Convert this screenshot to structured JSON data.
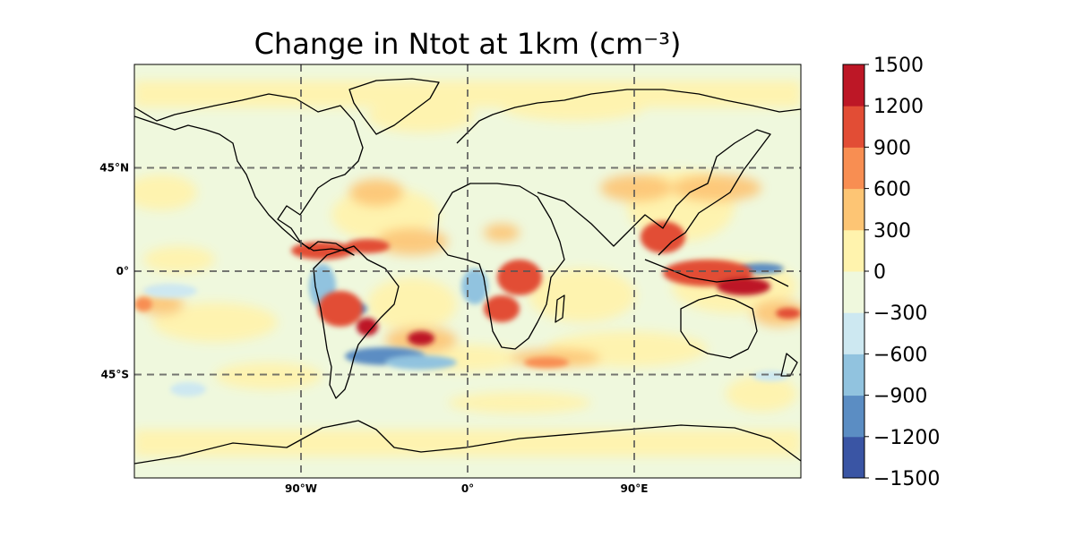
{
  "title": "Change in Ntot at 1km (cm⁻³)",
  "map": {
    "projection": "PlateCarree",
    "lon_range": [
      -180,
      180
    ],
    "lat_range": [
      -90,
      90
    ],
    "lat_ticks": [
      {
        "value": 45,
        "label": "45°N"
      },
      {
        "value": 0,
        "label": "0°"
      },
      {
        "value": -45,
        "label": "45°S"
      }
    ],
    "lon_ticks": [
      {
        "value": -90,
        "label": "90°W"
      },
      {
        "value": 0,
        "label": "0°"
      },
      {
        "value": 90,
        "label": "90°E"
      }
    ],
    "gridlines": "dashed",
    "coastlines": true,
    "background_level_color": "#eff8dd"
  },
  "colorbar": {
    "levels": [
      -1500,
      -1200,
      -900,
      -600,
      -300,
      0,
      300,
      600,
      900,
      1200,
      1500
    ],
    "labels": [
      "1500",
      "1200",
      "900",
      "600",
      "300",
      "0",
      "−300",
      "−600",
      "−900",
      "−1200",
      "−1500"
    ],
    "colors": [
      "#3a55a4",
      "#5b8dc3",
      "#91c3df",
      "#cde8f1",
      "#eff8dd",
      "#fff3ad",
      "#fdc574",
      "#f88e52",
      "#e24d35",
      "#bd1726"
    ],
    "colormap": "RdYlBu_r"
  }
}
